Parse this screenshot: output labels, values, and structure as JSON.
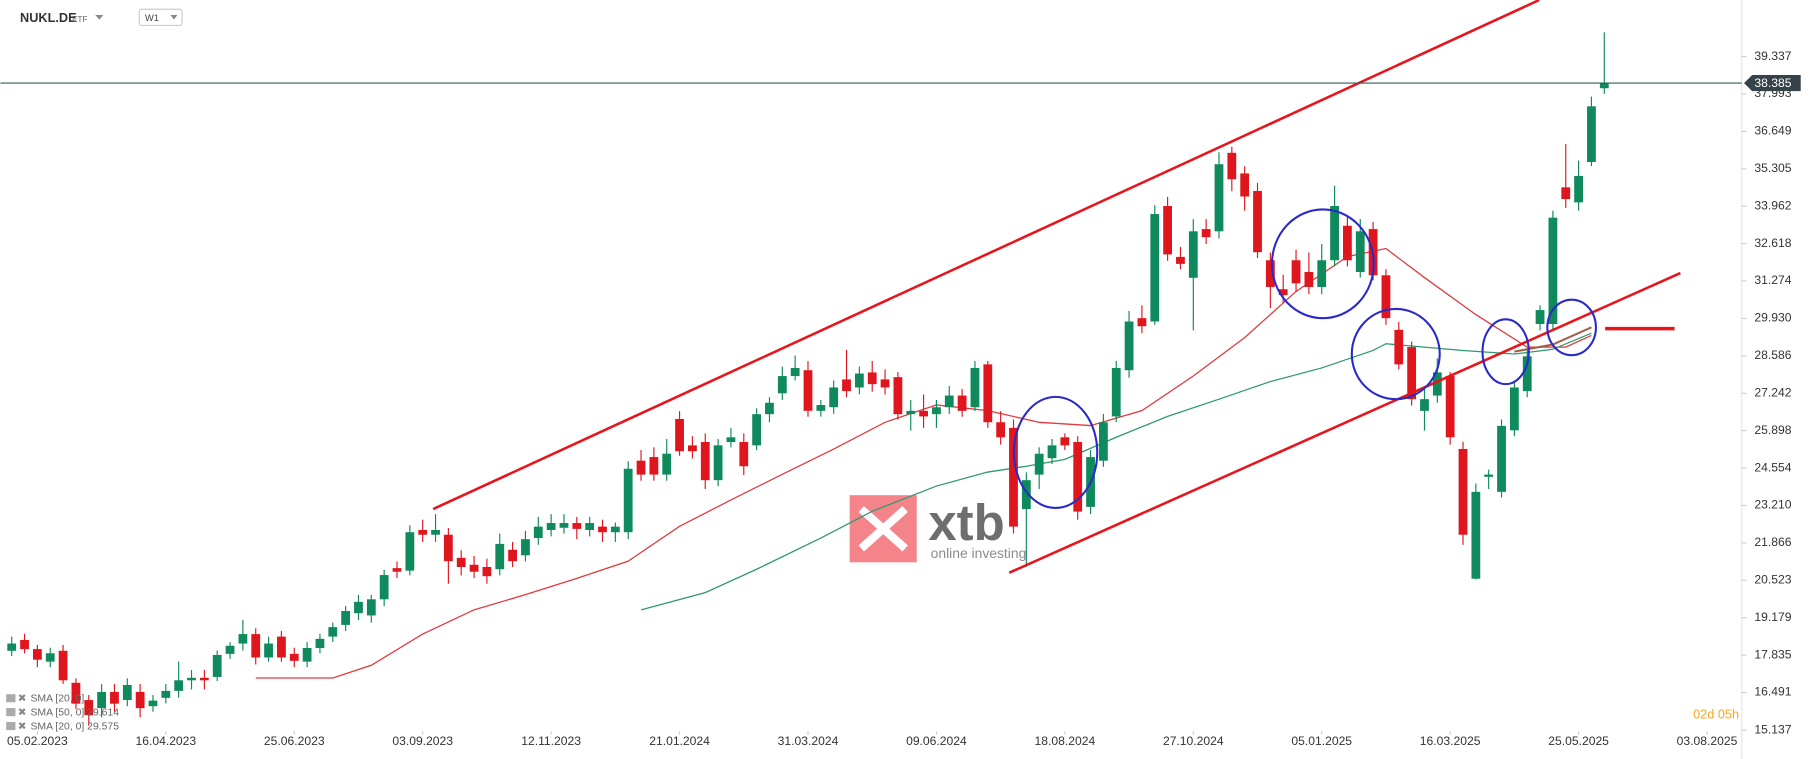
{
  "chart_data": {
    "type": "candlestick",
    "symbol": "NUKL.DE",
    "instrument_type": "ETF",
    "interval": "W1",
    "timer": "02d 05h",
    "watermark": {
      "brand": "xtb",
      "tagline": "online investing"
    },
    "grid": false,
    "up_color": "#0e8a5c",
    "down_color": "#e0161e",
    "xlim": [
      -0.88,
      134.7
    ],
    "xticks": [
      {
        "value": 2,
        "label": "05.02.2023"
      },
      {
        "value": 12,
        "label": "16.04.2023"
      },
      {
        "value": 22,
        "label": "25.06.2023"
      },
      {
        "value": 32,
        "label": "03.09.2023"
      },
      {
        "value": 42,
        "label": "12.11.2023"
      },
      {
        "value": 52,
        "label": "21.01.2024"
      },
      {
        "value": 62,
        "label": "31.03.2024"
      },
      {
        "value": 72,
        "label": "09.06.2024"
      },
      {
        "value": 82,
        "label": "18.08.2024"
      },
      {
        "value": 92,
        "label": "27.10.2024"
      },
      {
        "value": 102,
        "label": "05.01.2025"
      },
      {
        "value": 112,
        "label": "16.03.2025"
      },
      {
        "value": 122,
        "label": "25.05.2025"
      },
      {
        "value": 132,
        "label": "03.08.2025"
      }
    ],
    "ylim": [
      15.1,
      41.37
    ],
    "yticks": [
      39.337,
      37.993,
      36.649,
      35.305,
      33.962,
      32.618,
      31.274,
      {
        "value": 29.93,
        "label": "29.930"
      },
      28.586,
      27.242,
      25.898,
      24.554,
      {
        "value": 23.21,
        "label": "23.210"
      },
      21.866,
      20.523,
      19.179,
      17.835,
      16.491,
      15.137
    ],
    "last_price": 38.385,
    "open": [
      17.99,
      18.38,
      18.05,
      17.6,
      17.99,
      16.84,
      16.22,
      15.93,
      16.51,
      16.22,
      16.51,
      16.0,
      16.3,
      16.55,
      16.93,
      17.02,
      17.05,
      17.88,
      18.25,
      18.59,
      17.75,
      18.5,
      17.88,
      17.6,
      18.09,
      18.5,
      18.92,
      19.34,
      19.26,
      19.84,
      20.96,
      20.87,
      22.33,
      22.16,
      22.16,
      21.33,
      21.08,
      21.0,
      20.92,
      21.62,
      21.42,
      22.04,
      22.33,
      22.41,
      22.58,
      22.33,
      22.45,
      22.25,
      22.25,
      24.82,
      24.95,
      24.32,
      26.32,
      25.37,
      25.49,
      24.12,
      25.49,
      25.49,
      25.37,
      26.49,
      27.24,
      27.86,
      28.07,
      26.61,
      26.74,
      27.74,
      27.45,
      27.99,
      27.74,
      27.82,
      26.49,
      26.61,
      26.49,
      26.74,
      27.16,
      26.74,
      28.28,
      26.2,
      26.0,
      23.08,
      24.32,
      24.91,
      25.66,
      25.49,
      23.16,
      24.82,
      26.41,
      28.07,
      29.94,
      29.82,
      33.97,
      32.14,
      31.39,
      33.14,
      33.06,
      35.88,
      35.14,
      34.51,
      32.02,
      30.98,
      32.02,
      31.6,
      31.06,
      32.02,
      33.26,
      31.6,
      33.14,
      31.48,
      29.52,
      28.9,
      26.61,
      27.16,
      27.86,
      25.24,
      20.58,
      24.24,
      23.7,
      25.91,
      27.32,
      29.73,
      29.73,
      34.64,
      34.1,
      35.55,
      38.2
    ],
    "high": [
      18.5,
      18.6,
      18.2,
      18.1,
      18.2,
      17.0,
      16.4,
      16.8,
      16.8,
      17.0,
      16.8,
      16.4,
      16.8,
      17.6,
      17.3,
      17.3,
      18.0,
      18.3,
      19.1,
      18.8,
      18.5,
      18.7,
      18.1,
      18.3,
      18.6,
      19.0,
      19.6,
      20.0,
      20.0,
      20.9,
      21.2,
      22.5,
      22.7,
      22.9,
      22.4,
      21.6,
      21.4,
      21.3,
      22.2,
      21.9,
      22.3,
      22.8,
      22.9,
      22.9,
      22.8,
      22.8,
      22.7,
      22.6,
      24.8,
      25.2,
      25.3,
      25.6,
      26.6,
      25.7,
      25.8,
      25.6,
      26.0,
      25.8,
      26.7,
      27.1,
      28.2,
      28.6,
      28.4,
      27.0,
      27.7,
      28.8,
      28.2,
      28.4,
      28.1,
      28.0,
      27.0,
      27.2,
      27.0,
      27.5,
      27.4,
      28.4,
      28.4,
      26.6,
      26.3,
      24.4,
      25.3,
      25.6,
      25.8,
      25.7,
      25.2,
      26.5,
      28.4,
      30.2,
      30.4,
      34.0,
      34.3,
      32.5,
      33.5,
      33.5,
      35.9,
      36.1,
      35.4,
      34.8,
      32.3,
      31.5,
      32.4,
      32.3,
      32.6,
      34.7,
      33.6,
      33.5,
      33.4,
      31.7,
      29.8,
      29.1,
      27.4,
      28.5,
      28.0,
      25.5,
      24.0,
      24.5,
      26.3,
      27.7,
      28.8,
      30.4,
      33.8,
      36.2,
      35.6,
      37.9,
      40.21
    ],
    "low": [
      17.8,
      17.9,
      17.4,
      17.4,
      16.8,
      15.9,
      15.3,
      15.6,
      15.8,
      16.0,
      15.6,
      15.8,
      16.1,
      16.3,
      16.6,
      16.6,
      16.9,
      17.7,
      18.0,
      17.5,
      17.6,
      17.6,
      17.4,
      17.4,
      17.9,
      18.3,
      18.7,
      19.1,
      19.0,
      19.6,
      20.6,
      20.7,
      21.9,
      21.9,
      20.4,
      20.7,
      20.6,
      20.4,
      20.7,
      21.0,
      21.2,
      21.8,
      22.1,
      22.2,
      22.0,
      22.1,
      21.9,
      21.9,
      22.0,
      24.1,
      24.1,
      24.1,
      25.0,
      24.9,
      23.8,
      23.9,
      25.3,
      24.3,
      25.2,
      26.2,
      27.0,
      27.7,
      26.4,
      26.4,
      26.5,
      27.1,
      27.2,
      27.3,
      27.2,
      26.3,
      25.9,
      26.0,
      26.0,
      26.5,
      26.4,
      26.6,
      26.0,
      25.4,
      22.2,
      21.0,
      23.8,
      24.7,
      25.2,
      22.7,
      22.9,
      24.6,
      26.2,
      27.8,
      29.4,
      29.7,
      32.0,
      31.7,
      29.5,
      32.6,
      32.8,
      34.5,
      33.8,
      32.1,
      30.3,
      30.5,
      30.9,
      30.8,
      30.8,
      31.8,
      31.8,
      31.4,
      31.3,
      29.7,
      28.1,
      26.8,
      25.9,
      26.9,
      25.4,
      21.8,
      20.55,
      23.8,
      23.5,
      25.7,
      27.1,
      29.5,
      29.5,
      33.9,
      33.8,
      35.4,
      38.0
    ],
    "close": [
      18.25,
      18.05,
      17.67,
      17.9,
      16.93,
      16.09,
      15.68,
      16.51,
      16.09,
      16.76,
      15.93,
      16.2,
      16.55,
      16.93,
      17.02,
      16.93,
      17.84,
      18.17,
      18.59,
      17.75,
      18.25,
      17.75,
      17.63,
      18.09,
      18.42,
      18.84,
      19.42,
      19.75,
      19.84,
      20.71,
      20.83,
      22.25,
      22.16,
      22.33,
      21.21,
      21.0,
      20.83,
      20.67,
      21.83,
      21.21,
      22.0,
      22.45,
      22.58,
      22.58,
      22.37,
      22.58,
      22.25,
      22.45,
      24.53,
      24.32,
      24.32,
      25.07,
      25.16,
      25.16,
      24.12,
      25.37,
      25.66,
      24.62,
      26.49,
      26.9,
      27.86,
      28.15,
      26.61,
      26.82,
      27.45,
      27.32,
      27.95,
      27.57,
      27.45,
      26.49,
      26.61,
      26.41,
      26.74,
      27.16,
      26.61,
      28.15,
      26.2,
      25.66,
      22.45,
      24.12,
      25.07,
      25.37,
      25.37,
      22.99,
      24.95,
      26.2,
      28.15,
      29.82,
      29.65,
      33.68,
      32.23,
      31.89,
      33.06,
      32.85,
      35.47,
      34.93,
      34.31,
      32.31,
      31.06,
      30.77,
      31.19,
      31.06,
      32.02,
      33.97,
      32.02,
      33.06,
      31.48,
      29.94,
      28.28,
      27.03,
      27.03,
      27.99,
      25.66,
      22.16,
      23.7,
      24.32,
      26.07,
      27.45,
      28.57,
      30.23,
      33.55,
      34.22,
      35.05,
      37.55,
      38.385
    ],
    "overlays": [
      {
        "name": "SMA [20, 0]",
        "color": "#e0393e",
        "x": [
          19,
          25,
          28,
          32,
          36,
          40,
          44,
          48,
          52,
          56,
          60,
          64,
          68,
          72,
          76,
          80,
          84,
          88,
          92,
          96,
          100,
          104,
          107,
          110,
          114,
          118,
          121,
          123
        ],
        "values": [
          17.01,
          17.01,
          17.47,
          18.59,
          19.46,
          20.01,
          20.59,
          21.21,
          22.46,
          23.41,
          24.33,
          25.24,
          26.2,
          26.82,
          26.62,
          26.2,
          26.08,
          26.62,
          27.86,
          29.24,
          30.9,
          32.15,
          32.44,
          31.4,
          30.07,
          28.9,
          28.9,
          29.32
        ]
      },
      {
        "name": "SMA [50, 0] 29.614",
        "color": "#2e9a6c",
        "x": [
          49,
          54,
          58,
          63,
          67,
          72,
          76,
          79,
          82,
          86,
          90,
          94,
          98,
          102,
          106,
          107,
          110,
          113,
          117,
          120,
          123
        ],
        "values": [
          19.46,
          20.08,
          20.92,
          22.04,
          23.0,
          23.91,
          24.41,
          24.62,
          24.87,
          25.66,
          26.41,
          27.03,
          27.66,
          28.15,
          28.78,
          29.02,
          28.9,
          28.78,
          28.65,
          28.82,
          29.4
        ]
      },
      {
        "name": "SMA [20, 0] 29.575",
        "color": "#a0604a",
        "x": [
          117,
          120,
          123
        ],
        "values": [
          28.74,
          28.99,
          29.61
        ]
      }
    ]
  }
}
